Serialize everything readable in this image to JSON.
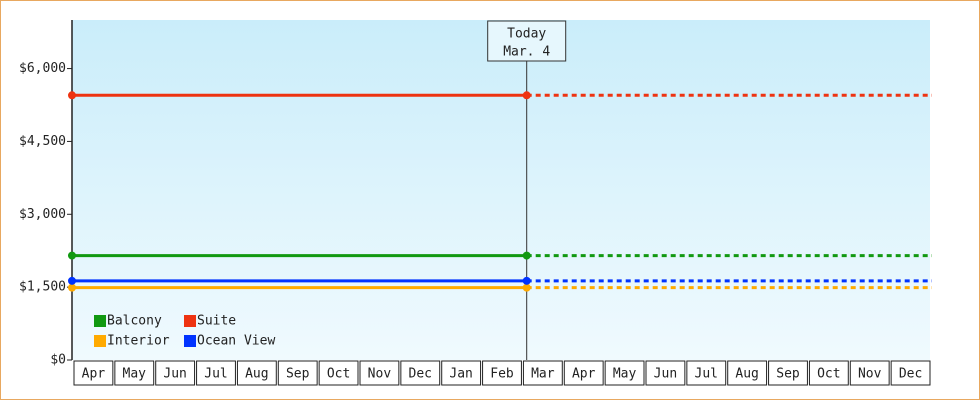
{
  "chart_data": {
    "type": "line",
    "categories": [
      "Apr",
      "May",
      "Jun",
      "Jul",
      "Aug",
      "Sep",
      "Oct",
      "Nov",
      "Dec",
      "Jan",
      "Feb",
      "Mar",
      "Apr",
      "May",
      "Jun",
      "Jul",
      "Aug",
      "Sep",
      "Oct",
      "Nov",
      "Dec"
    ],
    "series": [
      {
        "name": "Balcony",
        "color": "#119911",
        "value": 2150
      },
      {
        "name": "Suite",
        "color": "#ee3311",
        "value": 5450
      },
      {
        "name": "Interior",
        "color": "#ffaa00",
        "value": 1490
      },
      {
        "name": "Ocean View",
        "color": "#0033ff",
        "value": 1630
      }
    ],
    "today": [
      "Today",
      "Mar. 4"
    ],
    "ylim": [
      0,
      7000
    ],
    "yticks": [
      {
        "value": 0,
        "label": "$0"
      },
      {
        "value": 1500,
        "label": "$1,500"
      },
      {
        "value": 3000,
        "label": "$3,000"
      },
      {
        "value": 4500,
        "label": "$4,500"
      },
      {
        "value": 6000,
        "label": "$6,000"
      }
    ]
  }
}
